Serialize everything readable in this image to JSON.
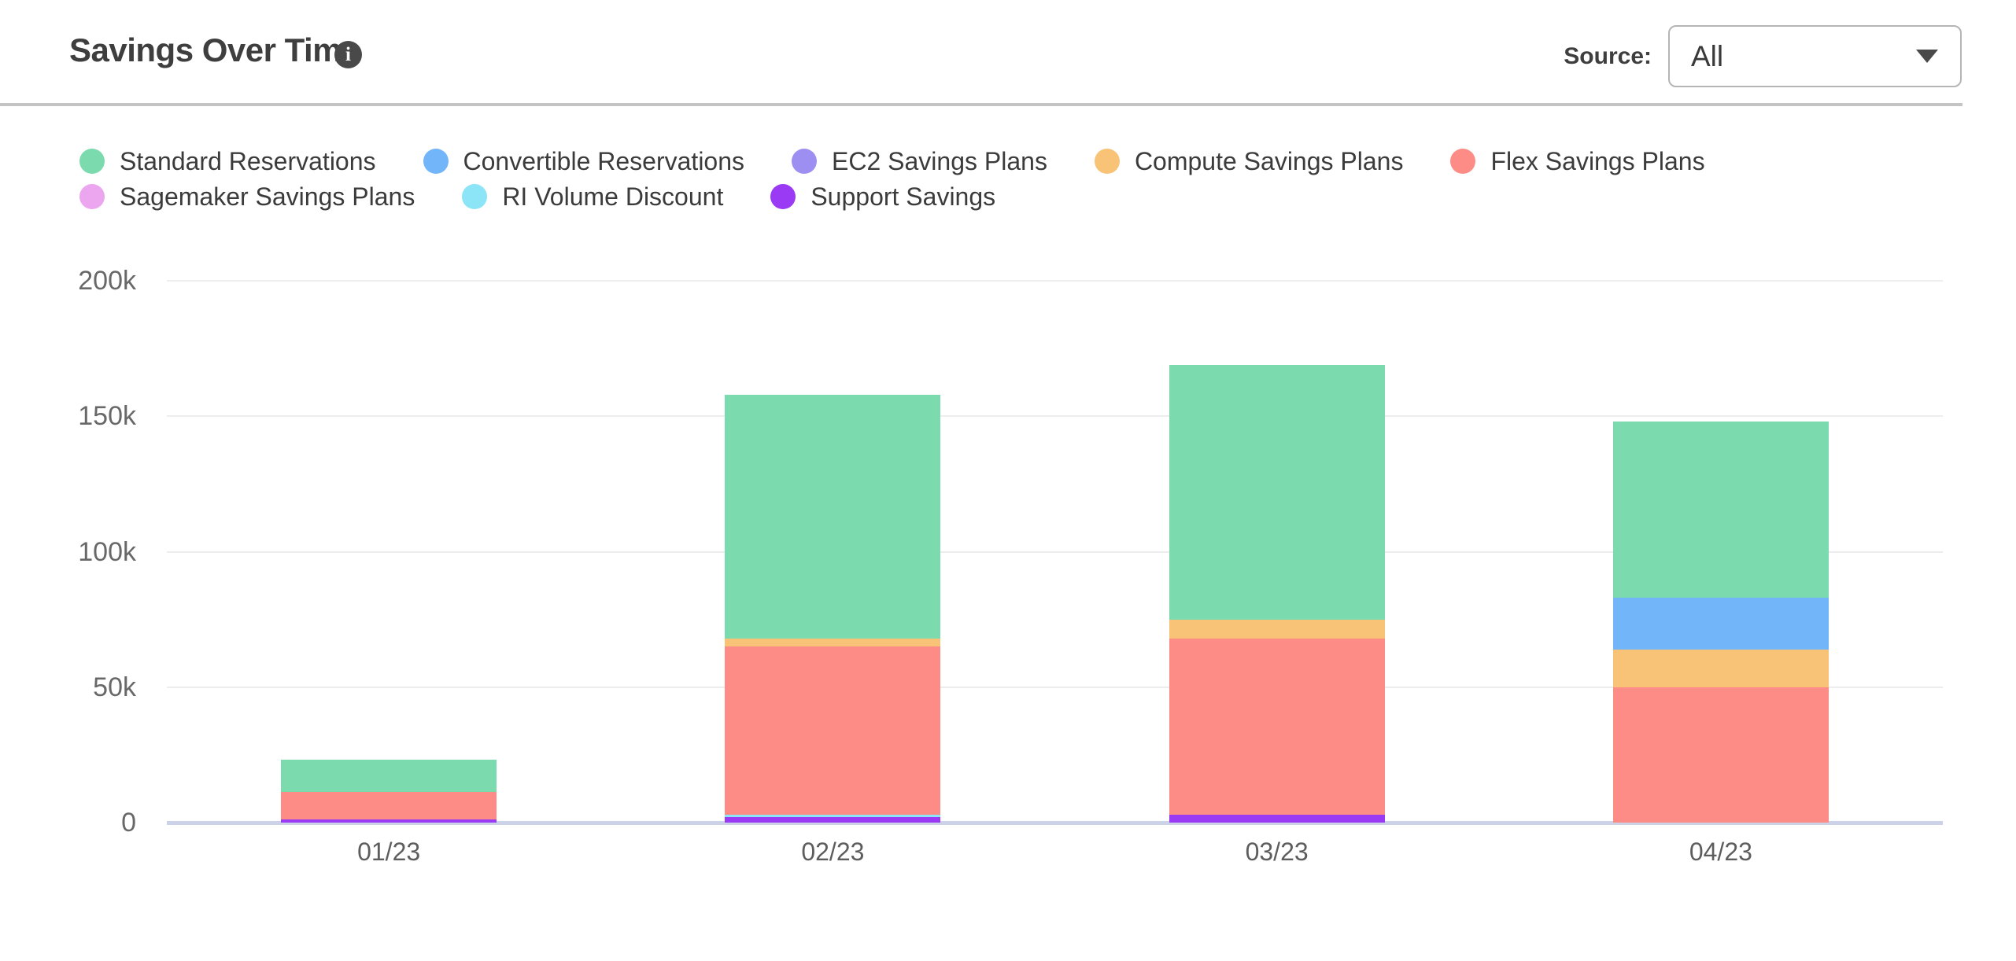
{
  "header": {
    "title": "Savings Over Time",
    "info_glyph": "i",
    "source_label": "Source:",
    "source_value": "All"
  },
  "colors": {
    "title_text": "#3e3e3e",
    "legend_text": "#3b3b3b",
    "tick_text": "#686868",
    "xlabel_text": "#5d5d5d",
    "gridline": "#ededed",
    "axis_baseline": "#ccd3e8",
    "header_divider": "#c4c4c4",
    "dropdown_border": "#b5b5b5",
    "info_icon_bg": "#494949"
  },
  "chart_data": {
    "type": "bar",
    "stacked": true,
    "title": "Savings Over Time",
    "categories": [
      "01/23",
      "02/23",
      "03/23",
      "04/23"
    ],
    "series": [
      {
        "name": "Standard Reservations",
        "color": "#7BDBAE",
        "values": [
          12000,
          90000,
          94000,
          65000
        ]
      },
      {
        "name": "Convertible Reservations",
        "color": "#73B5F9",
        "values": [
          0,
          0,
          0,
          19000
        ]
      },
      {
        "name": "EC2 Savings Plans",
        "color": "#9D8FF1",
        "values": [
          0,
          0,
          0,
          0
        ]
      },
      {
        "name": "Compute Savings Plans",
        "color": "#F8C377",
        "values": [
          0,
          3000,
          7000,
          14000
        ]
      },
      {
        "name": "Flex Savings Plans",
        "color": "#FC8C85",
        "values": [
          10000,
          62000,
          65000,
          50000
        ]
      },
      {
        "name": "Sagemaker Savings Plans",
        "color": "#ECA6F0",
        "values": [
          0,
          0,
          0,
          0
        ]
      },
      {
        "name": "RI Volume Discount",
        "color": "#8CE4F7",
        "values": [
          0,
          1000,
          0,
          0
        ]
      },
      {
        "name": "Support Savings",
        "color": "#9B3AF5",
        "values": [
          1200,
          2000,
          3000,
          0
        ]
      }
    ],
    "stack_order_bottom_to_top": [
      "Support Savings",
      "RI Volume Discount",
      "Sagemaker Savings Plans",
      "Flex Savings Plans",
      "Compute Savings Plans",
      "EC2 Savings Plans",
      "Convertible Reservations",
      "Standard Reservations"
    ],
    "totals": [
      23200,
      158000,
      169000,
      148000
    ],
    "y_ticks": [
      {
        "value": 0,
        "label": "0"
      },
      {
        "value": 50000,
        "label": "50k"
      },
      {
        "value": 100000,
        "label": "100k"
      },
      {
        "value": 150000,
        "label": "150k"
      },
      {
        "value": 200000,
        "label": "200k"
      }
    ],
    "ylim": [
      0,
      200000
    ],
    "grid": "horizontal",
    "legend_position": "top-left"
  }
}
